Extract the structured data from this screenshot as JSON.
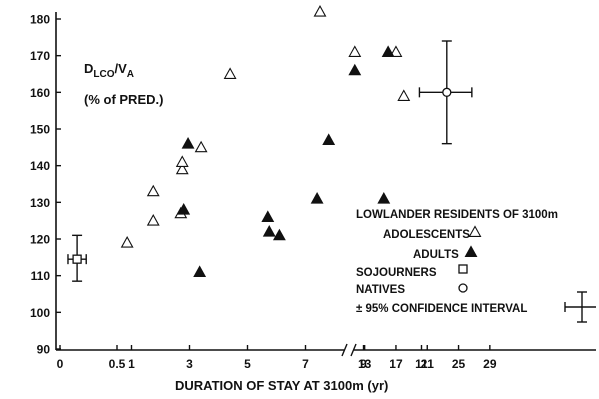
{
  "chart_data": {
    "type": "scatter",
    "title": "",
    "xlabel": "DURATION OF STAY AT 3100m (yr)",
    "ylabel_main": "D",
    "ylabel_sub": "LCO",
    "ylabel_div": "/V",
    "ylabel_sub2": "A",
    "ylabel_unit": "(% of PRED.)",
    "x_scale": "piecewise: 0-0.5 stretched, 0.5-11 linear, axis break at 11, 13-29 compressed",
    "x_ticks": [
      "0",
      "0.5",
      "1",
      "3",
      "5",
      "7",
      "9",
      "11",
      "13",
      "17",
      "21",
      "25",
      "29"
    ],
    "y_ticks": [
      "90",
      "100",
      "110",
      "120",
      "130",
      "140",
      "150",
      "160",
      "170",
      "180"
    ],
    "ylim": [
      90,
      183
    ],
    "legend": {
      "heading": "LOWLANDER RESIDENTS OF 3100m",
      "entries": [
        {
          "label": "ADOLESCENTS",
          "marker": "open-triangle"
        },
        {
          "label": "ADULTS",
          "marker": "filled-triangle"
        },
        {
          "label": "SOJOURNERS",
          "marker": "open-square"
        },
        {
          "label": "NATIVES",
          "marker": "open-circle"
        }
      ],
      "ci_label": "± 95% CONFIDENCE INTERVAL"
    },
    "series": [
      {
        "name": "ADOLESCENTS",
        "marker": "open-triangle",
        "points": [
          {
            "x": 0.85,
            "y": 119
          },
          {
            "x": 1.75,
            "y": 125
          },
          {
            "x": 1.75,
            "y": 133
          },
          {
            "x": 2.7,
            "y": 127
          },
          {
            "x": 2.75,
            "y": 139
          },
          {
            "x": 2.75,
            "y": 141
          },
          {
            "x": 3.4,
            "y": 145
          },
          {
            "x": 4.4,
            "y": 165
          },
          {
            "x": 7.5,
            "y": 182
          },
          {
            "x": 8.7,
            "y": 171
          },
          {
            "x": 17,
            "y": 171
          },
          {
            "x": 18,
            "y": 159
          }
        ]
      },
      {
        "name": "ADULTS",
        "marker": "filled-triangle",
        "points": [
          {
            "x": 2.8,
            "y": 128
          },
          {
            "x": 2.95,
            "y": 146
          },
          {
            "x": 3.35,
            "y": 111
          },
          {
            "x": 5.7,
            "y": 126
          },
          {
            "x": 5.75,
            "y": 122
          },
          {
            "x": 6.1,
            "y": 121
          },
          {
            "x": 7.4,
            "y": 131
          },
          {
            "x": 7.8,
            "y": 147
          },
          {
            "x": 8.7,
            "y": 166
          },
          {
            "x": 9.7,
            "y": 131
          },
          {
            "x": 16,
            "y": 171
          }
        ]
      },
      {
        "name": "SOJOURNERS",
        "marker": "open-square",
        "points": [
          {
            "x": 0.15,
            "y": 114.5,
            "x_ci": [
              0.07,
              0.23
            ],
            "y_ci": [
              108.5,
              121
            ]
          }
        ]
      },
      {
        "name": "NATIVES",
        "marker": "open-circle",
        "points": [
          {
            "x": 23.5,
            "y": 160,
            "x_ci": [
              20,
              26.7
            ],
            "y_ci": [
              146,
              174
            ]
          }
        ]
      }
    ]
  }
}
